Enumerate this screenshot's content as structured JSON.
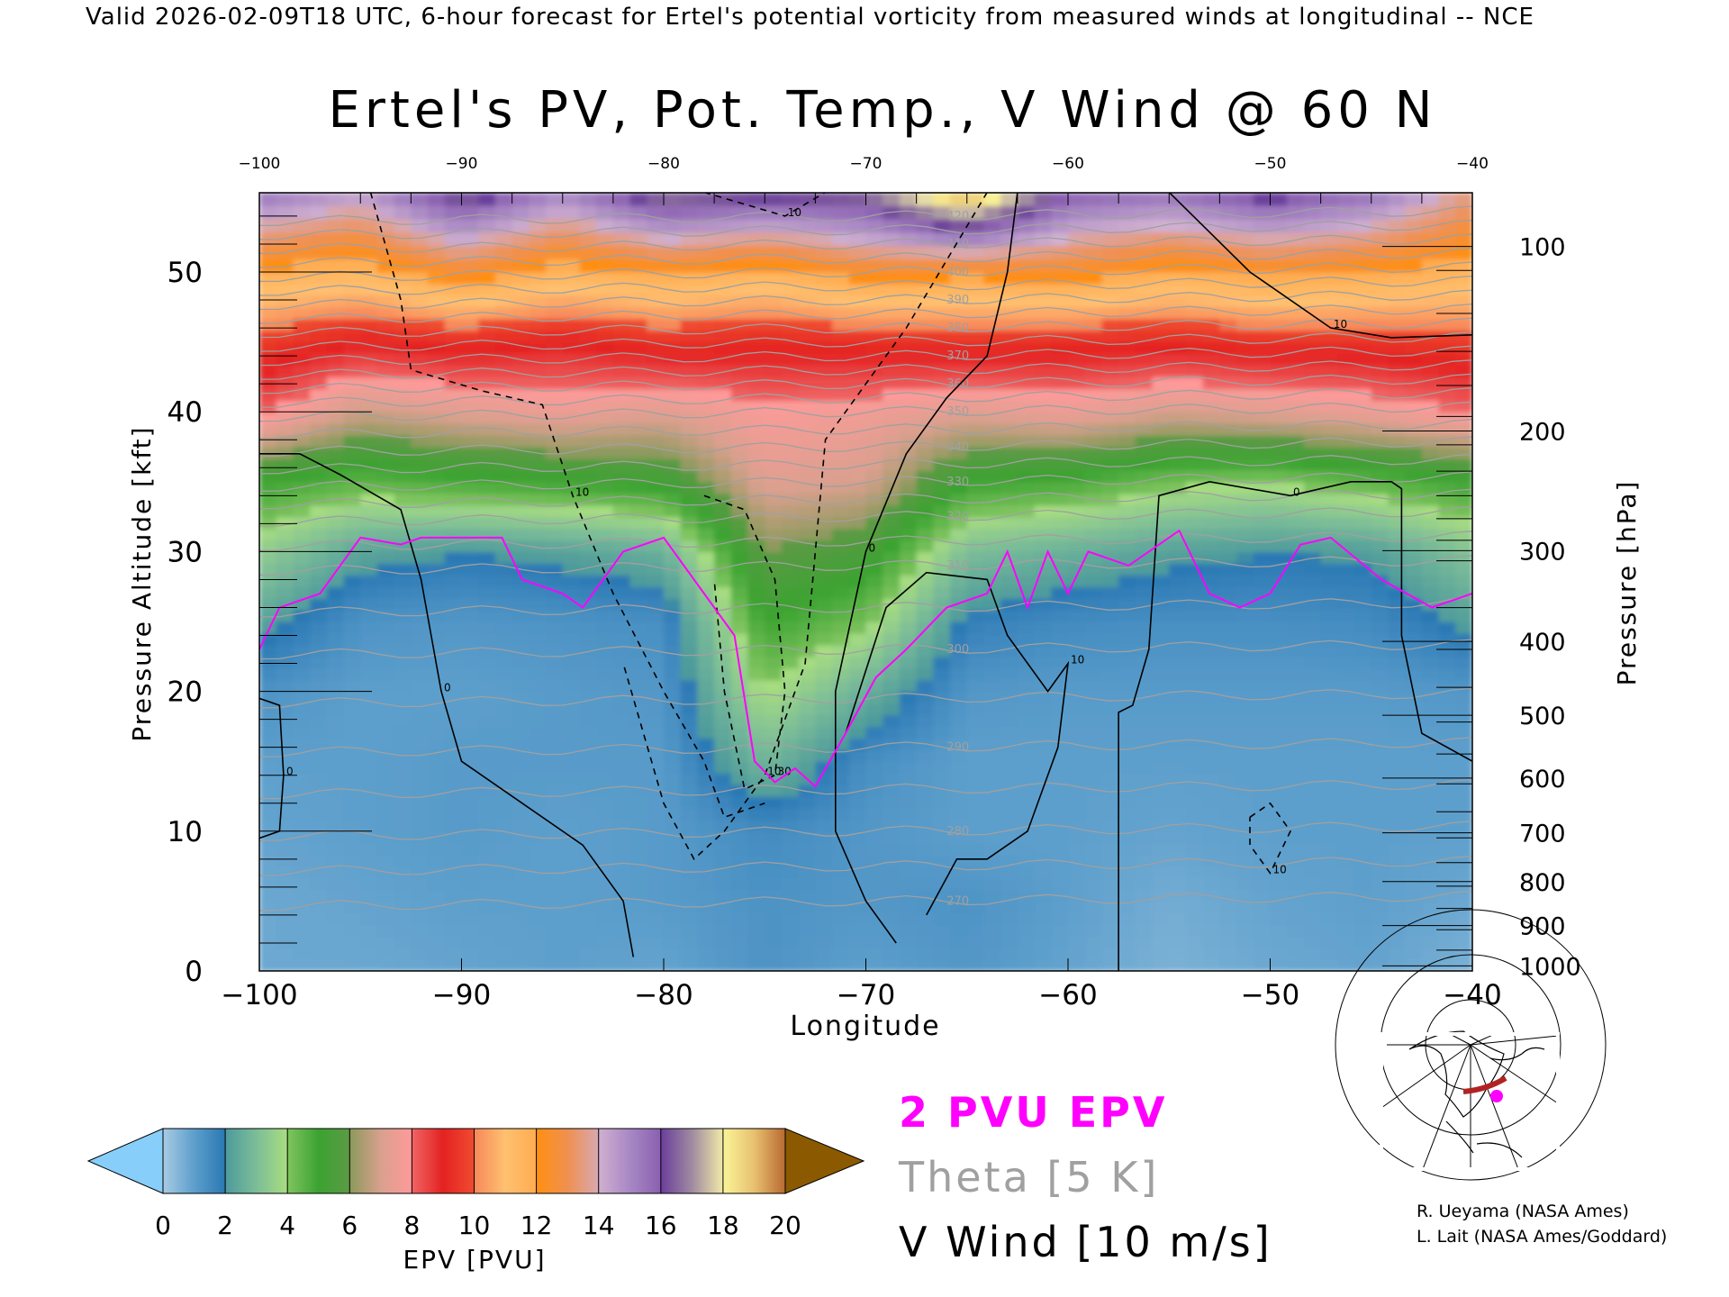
{
  "header": {
    "top_line": "Valid 2026-02-09T18 UTC, 6-hour forecast for Ertel's potential vorticity from measured winds at longitudinal -- NCE",
    "title": "Ertel's PV, Pot. Temp., V Wind @ 60 N"
  },
  "legend": {
    "pv_label": "2 PVU EPV",
    "theta_label": "Theta [5 K]",
    "wind_label": "V Wind [10 m/s]"
  },
  "credits": [
    "R. Ueyama (NASA Ames)",
    "L. Lait (NASA Ames/Goddard)"
  ],
  "colors": {
    "pv_contour": "#ff00ff",
    "theta": "#a0a0a0",
    "wind": "#000000",
    "track": "#b22222",
    "marker": "#ff00ff"
  },
  "chart_data": {
    "type": "heatmap",
    "title": "Ertel's PV, Pot. Temp., V Wind @ 60 N",
    "xlabel": "Longitude",
    "ylabel": "Pressure Altitude [kft]",
    "y2label": "Pressure [hPa]",
    "xlim": [
      -100,
      -40
    ],
    "ylim": [
      0,
      55.7
    ],
    "xticks": [
      -100,
      -90,
      -80,
      -70,
      -60,
      -50,
      -40
    ],
    "xtick_labels": [
      "−100",
      "−90",
      "−80",
      "−70",
      "−60",
      "−50",
      "−40"
    ],
    "yticks": [
      0,
      10,
      20,
      30,
      40,
      50
    ],
    "y2ticks": [
      100,
      200,
      300,
      400,
      500,
      600,
      700,
      800,
      900,
      1000
    ],
    "colorbar": {
      "label": "EPV [PVU]",
      "ticks": [
        0,
        2,
        4,
        6,
        8,
        10,
        12,
        14,
        16,
        18,
        20
      ],
      "under": "#87cefa",
      "over": "#8b5a00"
    },
    "colorscale": [
      [
        0,
        "#a9cbe3"
      ],
      [
        1,
        "#5d9fcc"
      ],
      [
        1.99,
        "#2a78b4"
      ],
      [
        2,
        "#4d9a9c"
      ],
      [
        3,
        "#7cbd98"
      ],
      [
        3.99,
        "#a8dd80"
      ],
      [
        4,
        "#80c460"
      ],
      [
        5,
        "#3ba331"
      ],
      [
        5.99,
        "#5c9a45"
      ],
      [
        6,
        "#8a9a5c"
      ],
      [
        7,
        "#d9a08e"
      ],
      [
        7.99,
        "#ff9a9a"
      ],
      [
        8,
        "#f06464"
      ],
      [
        9,
        "#e42222"
      ],
      [
        9.99,
        "#ef4b30"
      ],
      [
        10,
        "#f7885a"
      ],
      [
        11,
        "#ffc070"
      ],
      [
        11.99,
        "#ffac50"
      ],
      [
        12,
        "#ff8f10"
      ],
      [
        13,
        "#f09050"
      ],
      [
        13.99,
        "#d8a8b0"
      ],
      [
        14,
        "#d0b0d0"
      ],
      [
        15,
        "#a888c4"
      ],
      [
        15.99,
        "#8a60b0"
      ],
      [
        16,
        "#6a3e9c"
      ],
      [
        17,
        "#a08aa0"
      ],
      [
        17.99,
        "#f0e8a8"
      ],
      [
        18,
        "#faf598"
      ],
      [
        19,
        "#e8c070"
      ],
      [
        20,
        "#b86a30"
      ]
    ],
    "grid_lon": [
      -100,
      -95,
      -90,
      -85,
      -80,
      -75,
      -70,
      -65,
      -60,
      -55,
      -50,
      -45,
      -40
    ],
    "grid_kft": [
      0,
      5,
      10,
      15,
      20,
      25,
      30,
      35,
      40,
      45,
      50,
      55.7
    ],
    "epv": [
      [
        0.8,
        0.8,
        0.9,
        1.0,
        0.9,
        1.3,
        1.0,
        1.2,
        0.9,
        0.6,
        0.8,
        0.9,
        0.6
      ],
      [
        0.8,
        0.9,
        1.0,
        1.0,
        1.1,
        1.3,
        1.2,
        1.3,
        1.0,
        0.7,
        0.9,
        1.0,
        0.8
      ],
      [
        0.9,
        1.0,
        1.1,
        1.0,
        1.1,
        1.5,
        1.2,
        1.0,
        1.0,
        0.9,
        1.0,
        1.0,
        1.0
      ],
      [
        1.0,
        1.0,
        1.1,
        1.1,
        1.1,
        2.8,
        1.4,
        1.0,
        1.0,
        1.0,
        1.0,
        1.0,
        1.0
      ],
      [
        1.3,
        1.0,
        1.0,
        1.1,
        1.2,
        4.0,
        2.6,
        1.2,
        1.1,
        1.1,
        1.1,
        1.1,
        1.2
      ],
      [
        2.3,
        1.3,
        1.2,
        1.3,
        1.4,
        5.0,
        4.2,
        1.8,
        1.5,
        1.4,
        1.4,
        1.5,
        2.2
      ],
      [
        3.5,
        2.3,
        2.0,
        2.2,
        2.6,
        6.0,
        5.5,
        3.0,
        2.6,
        2.2,
        2.0,
        2.1,
        3.2
      ],
      [
        5.0,
        4.5,
        4.8,
        5.0,
        5.2,
        7.2,
        7.0,
        5.0,
        4.8,
        4.2,
        4.0,
        4.5,
        5.0
      ],
      [
        8.2,
        6.8,
        7.2,
        7.5,
        7.2,
        7.8,
        7.6,
        7.2,
        7.5,
        7.0,
        7.2,
        7.5,
        8.0
      ],
      [
        9.6,
        9.0,
        9.3,
        9.0,
        9.4,
        9.2,
        9.3,
        9.4,
        9.3,
        9.2,
        9.4,
        9.4,
        9.6
      ],
      [
        11.8,
        11.5,
        12.5,
        11.6,
        12.0,
        11.6,
        12.4,
        12.2,
        12.4,
        11.8,
        12.2,
        12.0,
        11.6
      ],
      [
        15.5,
        14.5,
        16.8,
        15.0,
        17.0,
        16.5,
        16.8,
        19.5,
        16.0,
        15.5,
        16.5,
        15.5,
        13.5
      ]
    ],
    "pv2_contour": [
      [
        -100,
        23
      ],
      [
        -99,
        26
      ],
      [
        -97,
        27
      ],
      [
        -95,
        31
      ],
      [
        -93,
        30.5
      ],
      [
        -92,
        31
      ],
      [
        -88,
        31
      ],
      [
        -87,
        28
      ],
      [
        -85,
        27
      ],
      [
        -84,
        26
      ],
      [
        -82,
        30
      ],
      [
        -80,
        31
      ],
      [
        -78,
        27
      ],
      [
        -76.5,
        24
      ],
      [
        -75.5,
        15
      ],
      [
        -74.5,
        13.5
      ],
      [
        -73.5,
        14.5
      ],
      [
        -72.5,
        13.2
      ],
      [
        -71,
        17
      ],
      [
        -69.5,
        21
      ],
      [
        -68,
        23
      ],
      [
        -66,
        26
      ],
      [
        -64,
        27
      ],
      [
        -63,
        30
      ],
      [
        -62,
        26
      ],
      [
        -61,
        30
      ],
      [
        -60,
        27
      ],
      [
        -59,
        30
      ],
      [
        -57,
        29
      ],
      [
        -56,
        30
      ],
      [
        -54.5,
        31.5
      ],
      [
        -53,
        27
      ],
      [
        -51.5,
        26
      ],
      [
        -50,
        27
      ],
      [
        -48.5,
        30.5
      ],
      [
        -47,
        31
      ],
      [
        -44.5,
        28
      ],
      [
        -42,
        26
      ],
      [
        -40,
        27
      ]
    ],
    "theta_levels": [
      {
        "K": 270,
        "kft": 5
      },
      {
        "K": 280,
        "kft": 10
      },
      {
        "K": 290,
        "kft": 16
      },
      {
        "K": 300,
        "kft": 23
      },
      {
        "K": 310,
        "kft": 29
      },
      {
        "K": 320,
        "kft": 32.5
      },
      {
        "K": 330,
        "kft": 35
      },
      {
        "K": 340,
        "kft": 37.5
      },
      {
        "K": 350,
        "kft": 40
      },
      {
        "K": 360,
        "kft": 42
      },
      {
        "K": 370,
        "kft": 44
      },
      {
        "K": 380,
        "kft": 46
      },
      {
        "K": 390,
        "kft": 48
      },
      {
        "K": 400,
        "kft": 50
      },
      {
        "K": 410,
        "kft": 52
      },
      {
        "K": 420,
        "kft": 54
      }
    ],
    "wind_contours": [
      {
        "value": 0,
        "label": "0",
        "points": [
          [
            -100,
            37
          ],
          [
            -98,
            37
          ],
          [
            -96,
            35.5
          ],
          [
            -93,
            33
          ],
          [
            -92,
            28
          ],
          [
            -91,
            20
          ],
          [
            -90,
            15
          ],
          [
            -87,
            12
          ],
          [
            -84,
            9
          ],
          [
            -82,
            5
          ],
          [
            -81.5,
            1
          ]
        ]
      },
      {
        "value": 0,
        "label": "0",
        "points": [
          [
            -62.5,
            55.7
          ],
          [
            -63,
            50
          ],
          [
            -64,
            44
          ],
          [
            -66,
            41
          ],
          [
            -68,
            37
          ],
          [
            -70,
            30
          ],
          [
            -71.5,
            20
          ],
          [
            -71.5,
            10
          ],
          [
            -70,
            5
          ],
          [
            -68.5,
            2
          ]
        ]
      },
      {
        "value": 10,
        "label": "10",
        "points": [
          [
            -71,
            17
          ],
          [
            -69,
            26
          ],
          [
            -67,
            28.5
          ],
          [
            -64,
            28
          ],
          [
            -63,
            24
          ],
          [
            -61,
            20
          ],
          [
            -60,
            22
          ],
          [
            -60.5,
            16
          ],
          [
            -62,
            10
          ],
          [
            -64,
            8
          ],
          [
            -65.5,
            8
          ],
          [
            -67,
            4
          ]
        ]
      },
      {
        "value": 0,
        "label": "0",
        "points": [
          [
            -57.5,
            0
          ],
          [
            -57.5,
            18.5
          ],
          [
            -56.8,
            19
          ],
          [
            -56,
            23
          ],
          [
            -55.5,
            34
          ],
          [
            -53,
            35
          ],
          [
            -49,
            34
          ],
          [
            -46,
            35
          ],
          [
            -44,
            35
          ],
          [
            -43.5,
            34.5
          ],
          [
            -43.5,
            24
          ],
          [
            -42.5,
            17
          ],
          [
            -40,
            15
          ]
        ]
      },
      {
        "value": 10,
        "label": "10",
        "points": [
          [
            -55,
            55.7
          ],
          [
            -51,
            50
          ],
          [
            -47,
            46
          ],
          [
            -44,
            45.3
          ],
          [
            -40,
            45.5
          ]
        ]
      },
      {
        "value": 0,
        "label": "0",
        "points": [
          [
            -100,
            19.5
          ],
          [
            -99,
            19
          ],
          [
            -98.8,
            14
          ],
          [
            -99,
            10
          ],
          [
            -100,
            9.5
          ]
        ]
      },
      {
        "value": -10,
        "label": "10",
        "points": [
          [
            -94.5,
            55.7
          ],
          [
            -93,
            48
          ],
          [
            -92.5,
            43
          ],
          [
            -89,
            41.5
          ],
          [
            -86,
            40.5
          ],
          [
            -84.5,
            34
          ],
          [
            -82.5,
            27
          ],
          [
            -80,
            20
          ],
          [
            -78,
            15
          ],
          [
            -77,
            11
          ],
          [
            -75,
            12
          ]
        ]
      },
      {
        "value": -10,
        "label": "10",
        "points": [
          [
            -64,
            55.7
          ],
          [
            -68,
            46
          ],
          [
            -72,
            38
          ],
          [
            -72.5,
            30
          ],
          [
            -73,
            22
          ],
          [
            -75,
            14
          ],
          [
            -77,
            10
          ],
          [
            -78.5,
            8
          ],
          [
            -80,
            12
          ],
          [
            -82,
            22
          ]
        ]
      },
      {
        "value": -30,
        "label": "30",
        "points": [
          [
            -78,
            34
          ],
          [
            -76,
            33
          ],
          [
            -74.5,
            28
          ],
          [
            -74,
            20
          ],
          [
            -74.5,
            14
          ],
          [
            -76,
            13
          ],
          [
            -77,
            20
          ],
          [
            -77.5,
            28
          ]
        ]
      },
      {
        "value": -10,
        "label": "10",
        "points": [
          [
            -51,
            11
          ],
          [
            -50,
            12
          ],
          [
            -49,
            10
          ],
          [
            -50,
            7
          ],
          [
            -51,
            9
          ],
          [
            -51,
            11
          ]
        ]
      },
      {
        "value": -10,
        "label": "10",
        "points": [
          [
            -78,
            55.7
          ],
          [
            -74,
            54
          ],
          [
            -72,
            55.7
          ]
        ]
      }
    ]
  }
}
